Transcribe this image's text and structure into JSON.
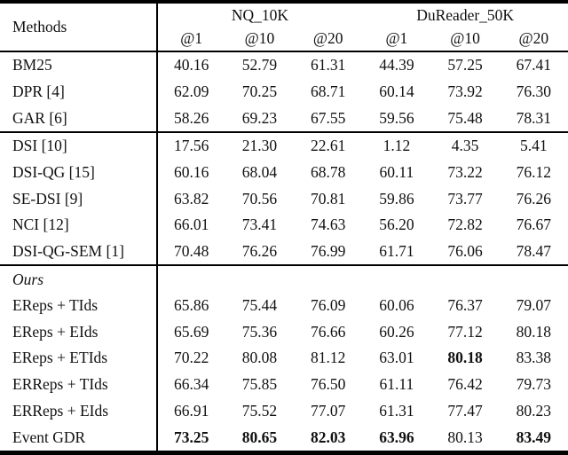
{
  "page": {
    "background": "#ffffff",
    "text_color": "#111111",
    "rule_color": "#000000"
  },
  "table": {
    "methods_header": "Methods",
    "groups": [
      {
        "label": "NQ_10K",
        "span": 3
      },
      {
        "label": "DuReader_50K",
        "span": 3
      }
    ],
    "sub_headers": [
      "@1",
      "@10",
      "@20",
      "@1",
      "@10",
      "@20"
    ],
    "sections": [
      {
        "label": null,
        "rows": [
          {
            "method": "BM25",
            "values": [
              "40.16",
              "52.79",
              "61.31",
              "44.39",
              "57.25",
              "67.41"
            ],
            "bold": [
              0,
              0,
              0,
              0,
              0,
              0
            ]
          },
          {
            "method": "DPR [4]",
            "values": [
              "62.09",
              "70.25",
              "68.71",
              "60.14",
              "73.92",
              "76.30"
            ],
            "bold": [
              0,
              0,
              0,
              0,
              0,
              0
            ]
          },
          {
            "method": "GAR [6]",
            "values": [
              "58.26",
              "69.23",
              "67.55",
              "59.56",
              "75.48",
              "78.31"
            ],
            "bold": [
              0,
              0,
              0,
              0,
              0,
              0
            ]
          }
        ]
      },
      {
        "label": null,
        "rows": [
          {
            "method": "DSI [10]",
            "values": [
              "17.56",
              "21.30",
              "22.61",
              "1.12",
              "4.35",
              "5.41"
            ],
            "bold": [
              0,
              0,
              0,
              0,
              0,
              0
            ]
          },
          {
            "method": "DSI-QG [15]",
            "values": [
              "60.16",
              "68.04",
              "68.78",
              "60.11",
              "73.22",
              "76.12"
            ],
            "bold": [
              0,
              0,
              0,
              0,
              0,
              0
            ]
          },
          {
            "method": "SE-DSI [9]",
            "values": [
              "63.82",
              "70.56",
              "70.81",
              "59.86",
              "73.77",
              "76.26"
            ],
            "bold": [
              0,
              0,
              0,
              0,
              0,
              0
            ]
          },
          {
            "method": "NCI [12]",
            "values": [
              "66.01",
              "73.41",
              "74.63",
              "56.20",
              "72.82",
              "76.67"
            ],
            "bold": [
              0,
              0,
              0,
              0,
              0,
              0
            ]
          },
          {
            "method": "DSI-QG-SEM [1]",
            "values": [
              "70.48",
              "76.26",
              "76.99",
              "61.71",
              "76.06",
              "78.47"
            ],
            "bold": [
              0,
              0,
              0,
              0,
              0,
              0
            ]
          }
        ]
      },
      {
        "label": "Ours",
        "rows": [
          {
            "method": "EReps + TIds",
            "values": [
              "65.86",
              "75.44",
              "76.09",
              "60.06",
              "76.37",
              "79.07"
            ],
            "bold": [
              0,
              0,
              0,
              0,
              0,
              0
            ]
          },
          {
            "method": "EReps + EIds",
            "values": [
              "65.69",
              "75.36",
              "76.66",
              "60.26",
              "77.12",
              "80.18"
            ],
            "bold": [
              0,
              0,
              0,
              0,
              0,
              0
            ]
          },
          {
            "method": "EReps + ETIds",
            "values": [
              "70.22",
              "80.08",
              "81.12",
              "63.01",
              "80.18",
              "83.38"
            ],
            "bold": [
              0,
              0,
              0,
              0,
              1,
              0
            ]
          },
          {
            "method": "ERReps + TIds",
            "values": [
              "66.34",
              "75.85",
              "76.50",
              "61.11",
              "76.42",
              "79.73"
            ],
            "bold": [
              0,
              0,
              0,
              0,
              0,
              0
            ]
          },
          {
            "method": "ERReps + EIds",
            "values": [
              "66.91",
              "75.52",
              "77.07",
              "61.31",
              "77.47",
              "80.23"
            ],
            "bold": [
              0,
              0,
              0,
              0,
              0,
              0
            ]
          },
          {
            "method": "Event GDR",
            "values": [
              "73.25",
              "80.65",
              "82.03",
              "63.96",
              "80.13",
              "83.49"
            ],
            "bold": [
              1,
              1,
              1,
              1,
              0,
              1
            ]
          }
        ]
      }
    ]
  }
}
